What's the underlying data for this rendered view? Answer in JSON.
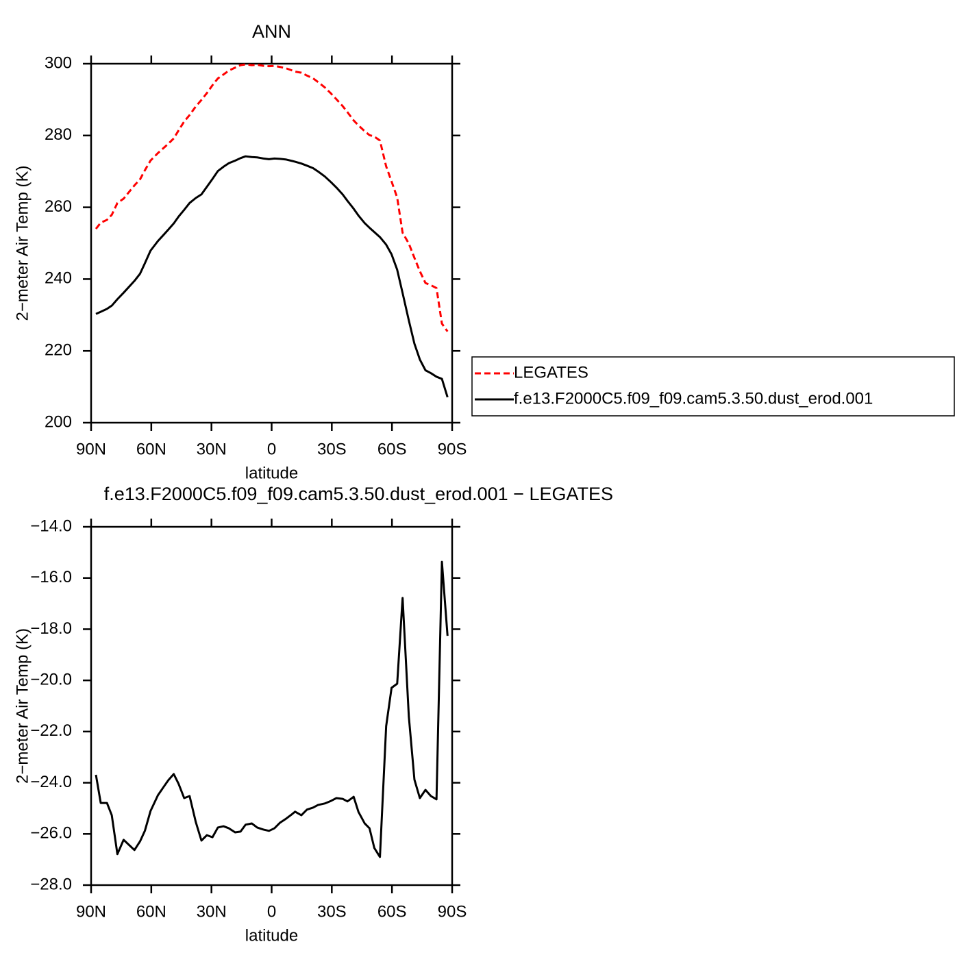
{
  "chart_data": [
    {
      "type": "line",
      "title": "ANN",
      "xlabel": "latitude",
      "ylabel": "2−meter Air Temp (K)",
      "x": [
        87.6,
        85.2,
        82.1,
        79.7,
        76.9,
        73.8,
        68.4,
        65.6,
        63.2,
        60.4,
        56.7,
        53.9,
        51.5,
        48.8,
        46.4,
        43.6,
        40.9,
        37.8,
        35.0,
        32.3,
        29.5,
        26.8,
        24.0,
        21.3,
        18.2,
        15.5,
        13.0,
        9.9,
        7.2,
        4.1,
        1.3,
        -1.4,
        -4.2,
        -7.3,
        -10.3,
        -11.7,
        -14.8,
        -17.6,
        -20.7,
        -23.1,
        -26.5,
        -29.6,
        -32.3,
        -35.4,
        -37.8,
        -40.9,
        -43.3,
        -46.4,
        -48.8,
        -51.2,
        -54.0,
        -57.1,
        -59.8,
        -62.6,
        -65.3,
        -68.4,
        -71.2,
        -73.9,
        -76.7,
        -79.4,
        -82.2,
        -84.9,
        -87.7
      ],
      "series": [
        {
          "name": "LEGATES",
          "color": "#ff0000",
          "dashed": true,
          "values": [
            254.0,
            255.7,
            256.5,
            257.9,
            261.2,
            262.4,
            266.1,
            267.8,
            270.3,
            273.0,
            275.1,
            276.5,
            277.7,
            279.2,
            281.4,
            283.9,
            285.7,
            288.1,
            289.9,
            291.8,
            294.0,
            295.9,
            297.0,
            298.1,
            298.9,
            299.6,
            299.8,
            299.6,
            299.7,
            299.4,
            299.3,
            299.4,
            299.1,
            298.7,
            298.1,
            297.8,
            297.5,
            296.7,
            295.9,
            294.9,
            293.4,
            291.7,
            290.1,
            288.2,
            286.5,
            284.2,
            282.8,
            281.2,
            280.1,
            279.7,
            278.6,
            271.4,
            267.2,
            262.7,
            252.9,
            249.9,
            245.9,
            242.2,
            238.9,
            238.3,
            237.5,
            227.6,
            225.4
          ]
        },
        {
          "name": "f.e13.F2000C5.f09_f09.cam5.3.50.dust_erod.001",
          "color": "#000000",
          "dashed": false,
          "values": [
            230.3,
            230.9,
            231.7,
            232.6,
            234.4,
            236.2,
            239.5,
            241.5,
            244.4,
            247.9,
            250.6,
            252.3,
            253.8,
            255.5,
            257.4,
            259.3,
            261.2,
            262.6,
            263.6,
            265.7,
            267.9,
            270.1,
            271.3,
            272.3,
            273.0,
            273.7,
            274.2,
            274.0,
            273.9,
            273.6,
            273.4,
            273.6,
            273.5,
            273.3,
            272.9,
            272.7,
            272.2,
            271.6,
            270.9,
            270.0,
            268.6,
            267.0,
            265.5,
            263.6,
            261.8,
            259.6,
            257.7,
            255.6,
            254.3,
            253.1,
            251.7,
            249.6,
            246.9,
            242.6,
            236.1,
            228.5,
            222.0,
            217.6,
            214.6,
            213.8,
            212.8,
            212.2,
            207.1
          ]
        }
      ],
      "xlim": [
        90,
        -90
      ],
      "xticks": [
        {
          "value": 90,
          "label": "90N"
        },
        {
          "value": 60,
          "label": "60N"
        },
        {
          "value": 30,
          "label": "30N"
        },
        0,
        {
          "value": -30,
          "label": "30S"
        },
        {
          "value": -60,
          "label": "60S"
        },
        {
          "value": -90,
          "label": "90S"
        }
      ],
      "ylim": [
        200,
        300
      ],
      "yticks": [
        200,
        220,
        240,
        260,
        280,
        300
      ],
      "legend": "right"
    },
    {
      "type": "line",
      "title": "f.e13.F2000C5.f09_f09.cam5.3.50.dust_erod.001 − LEGATES",
      "xlabel": "latitude",
      "ylabel": "2−meter Air Temp (K)",
      "x": [
        87.6,
        85.2,
        82.1,
        79.7,
        76.9,
        73.8,
        68.4,
        65.6,
        63.2,
        60.4,
        56.7,
        53.9,
        51.5,
        48.8,
        46.4,
        43.6,
        40.9,
        37.8,
        35.0,
        32.3,
        29.5,
        26.8,
        24.0,
        21.3,
        18.2,
        15.5,
        13.0,
        9.9,
        7.2,
        4.1,
        1.3,
        -1.4,
        -4.2,
        -7.3,
        -10.3,
        -11.7,
        -14.8,
        -17.6,
        -20.7,
        -23.1,
        -26.5,
        -29.6,
        -32.3,
        -35.4,
        -37.8,
        -40.9,
        -43.3,
        -46.4,
        -48.8,
        -51.2,
        -54.0,
        -57.1,
        -59.8,
        -62.6,
        -65.3,
        -68.4,
        -71.2,
        -73.9,
        -76.7,
        -79.4,
        -82.2,
        -84.9,
        -87.7
      ],
      "series": [
        {
          "color": "#000000",
          "dashed": false,
          "values": [
            -23.69,
            -24.79,
            -24.79,
            -25.27,
            -26.79,
            -26.23,
            -26.63,
            -26.29,
            -25.88,
            -25.11,
            -24.49,
            -24.17,
            -23.9,
            -23.66,
            -24.04,
            -24.6,
            -24.52,
            -25.54,
            -26.26,
            -26.05,
            -26.13,
            -25.75,
            -25.7,
            -25.78,
            -25.94,
            -25.91,
            -25.64,
            -25.59,
            -25.75,
            -25.83,
            -25.88,
            -25.78,
            -25.56,
            -25.4,
            -25.22,
            -25.13,
            -25.27,
            -25.05,
            -24.97,
            -24.87,
            -24.81,
            -24.71,
            -24.6,
            -24.63,
            -24.73,
            -24.55,
            -25.14,
            -25.59,
            -25.78,
            -26.55,
            -26.9,
            -21.79,
            -20.29,
            -20.13,
            -16.78,
            -21.41,
            -23.88,
            -24.6,
            -24.28,
            -24.52,
            -24.65,
            -15.37,
            -18.26
          ]
        }
      ],
      "xlim": [
        90,
        -90
      ],
      "xticks": [
        {
          "value": 90,
          "label": "90N"
        },
        {
          "value": 60,
          "label": "60N"
        },
        {
          "value": 30,
          "label": "30N"
        },
        0,
        {
          "value": -30,
          "label": "30S"
        },
        {
          "value": -60,
          "label": "60S"
        },
        {
          "value": -90,
          "label": "90S"
        }
      ],
      "ylim": [
        -28,
        -14
      ],
      "yticks": [
        {
          "value": -28,
          "label": "−28.0"
        },
        {
          "value": -26,
          "label": "−26.0"
        },
        {
          "value": -24,
          "label": "−24.0"
        },
        {
          "value": -22,
          "label": "−22.0"
        },
        {
          "value": -20,
          "label": "−20.0"
        },
        {
          "value": -18,
          "label": "−18.0"
        },
        {
          "value": -16,
          "label": "−16.0"
        },
        {
          "value": -14,
          "label": "−14.0"
        }
      ]
    }
  ]
}
